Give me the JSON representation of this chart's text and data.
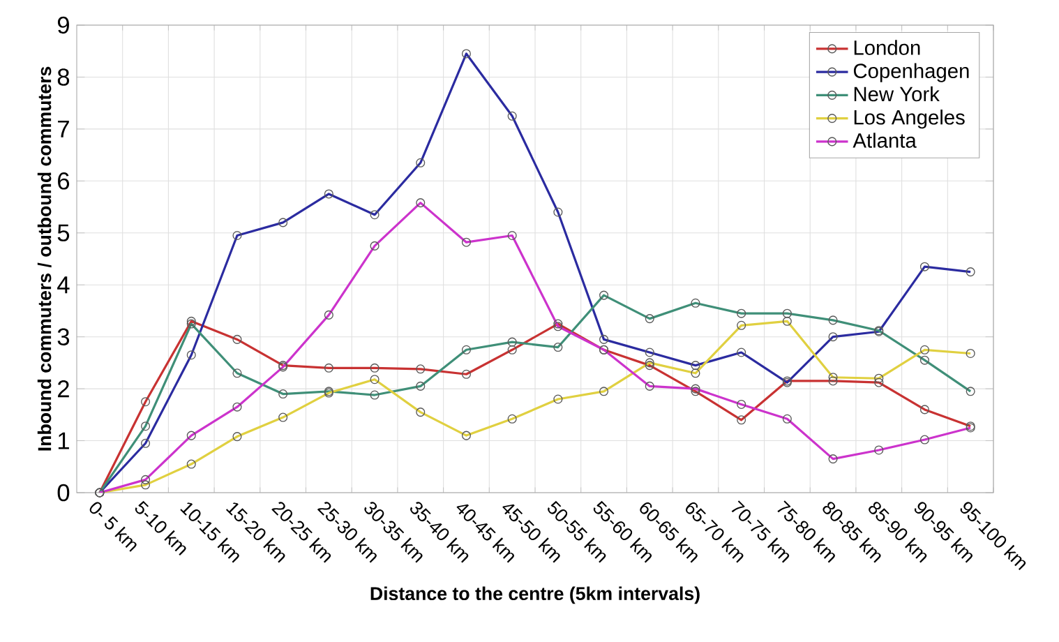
{
  "chart_data": {
    "type": "line",
    "xlabel": "Distance to the centre (5km intervals)",
    "ylabel": "Inbound commuters / outbound commuters",
    "categories": [
      "0- 5 km",
      "5-10 km",
      "10-15 km",
      "15-20 km",
      "20-25 km",
      "25-30 km",
      "30-35 km",
      "35-40 km",
      "40-45 km",
      "45-50 km",
      "50-55 km",
      "55-60 km",
      "60-65 km",
      "65-70 km",
      "70-75 km",
      "75-80 km",
      "80-85 km",
      "85-90 km",
      "90-95 km",
      "95-100 km"
    ],
    "ylim": [
      0,
      9
    ],
    "yticks": [
      0,
      1,
      2,
      3,
      4,
      5,
      6,
      7,
      8,
      9
    ],
    "grid": true,
    "legend": "top right",
    "marker": "circle",
    "line_style": "solid",
    "series": [
      {
        "name": "London",
        "color": "#c83232",
        "values": [
          0,
          1.75,
          3.3,
          2.95,
          2.45,
          2.4,
          2.4,
          2.38,
          2.28,
          2.75,
          3.25,
          2.75,
          2.45,
          1.95,
          1.4,
          2.15,
          2.15,
          2.12,
          1.6,
          1.28
        ]
      },
      {
        "name": "Copenhagen",
        "color": "#2b2ba0",
        "values": [
          0,
          0.95,
          2.65,
          4.95,
          5.2,
          5.75,
          5.35,
          6.35,
          8.45,
          7.25,
          5.4,
          2.95,
          2.7,
          2.45,
          2.7,
          2.12,
          3.0,
          3.1,
          4.35,
          4.25
        ]
      },
      {
        "name": "New York",
        "color": "#3f8f78",
        "values": [
          0,
          1.28,
          3.25,
          2.3,
          1.9,
          1.95,
          1.88,
          2.05,
          2.75,
          2.9,
          2.8,
          3.8,
          3.35,
          3.65,
          3.45,
          3.45,
          3.32,
          3.12,
          2.55,
          1.95
        ]
      },
      {
        "name": "Los Angeles",
        "color": "#e0d040",
        "values": [
          0,
          0.15,
          0.55,
          1.08,
          1.45,
          1.92,
          2.18,
          1.55,
          1.1,
          1.42,
          1.8,
          1.95,
          2.5,
          2.3,
          3.22,
          3.3,
          2.22,
          2.2,
          2.75,
          2.68
        ]
      },
      {
        "name": "Atlanta",
        "color": "#cc33cc",
        "values": [
          0,
          0.25,
          1.1,
          1.65,
          2.42,
          3.42,
          4.75,
          5.58,
          4.82,
          4.95,
          3.2,
          2.75,
          2.05,
          2.0,
          1.7,
          1.42,
          0.65,
          0.82,
          1.02,
          1.25
        ]
      }
    ]
  }
}
